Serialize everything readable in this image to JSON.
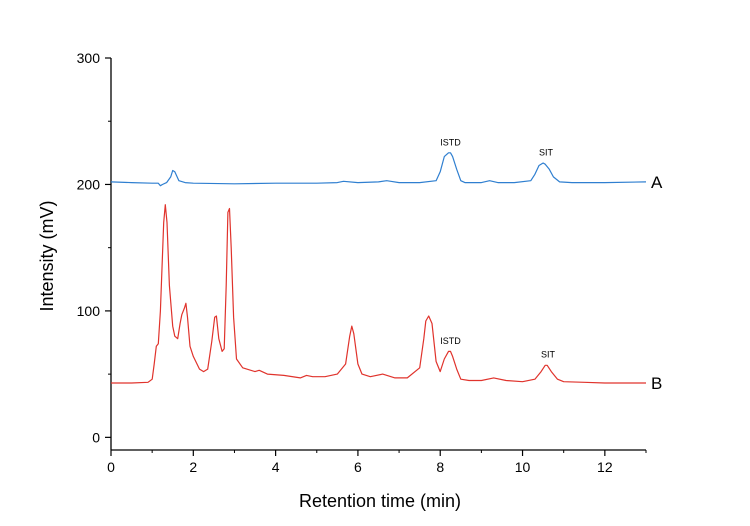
{
  "chart_data": {
    "type": "line",
    "title": "",
    "xlabel": "Retention time (min)",
    "ylabel": "Intensity (mV)",
    "xlim": [
      0,
      13
    ],
    "ylim": [
      -10,
      300
    ],
    "xticks": [
      0,
      2,
      4,
      6,
      8,
      10,
      12
    ],
    "yticks": [
      0,
      100,
      200,
      300
    ],
    "grid": false,
    "colors": {
      "A": "#2f7fd0",
      "B": "#e0332c"
    },
    "series": [
      {
        "name": "A",
        "x": [
          0,
          0.5,
          1.0,
          1.15,
          1.2,
          1.25,
          1.35,
          1.45,
          1.5,
          1.55,
          1.65,
          1.8,
          2.0,
          3.0,
          4.0,
          5.0,
          5.5,
          5.65,
          6.0,
          6.5,
          6.7,
          6.8,
          7.0,
          7.5,
          7.9,
          8.0,
          8.1,
          8.2,
          8.25,
          8.3,
          8.4,
          8.5,
          8.6,
          9.0,
          9.2,
          9.4,
          9.8,
          10.2,
          10.3,
          10.4,
          10.5,
          10.55,
          10.65,
          10.75,
          10.9,
          11.2,
          12.0,
          13.0
        ],
        "y": [
          202,
          201.5,
          201,
          201,
          199,
          200,
          201.5,
          206,
          211,
          210,
          203,
          201.5,
          201,
          200.5,
          201,
          201,
          201.5,
          202.5,
          201.5,
          202,
          203,
          202.5,
          201.5,
          201.5,
          203,
          210,
          222,
          225,
          225,
          222,
          212,
          203,
          201.5,
          201.5,
          203,
          201.5,
          201.5,
          203,
          208,
          215,
          217,
          216,
          212,
          206,
          202,
          201.5,
          201.5,
          202
        ]
      },
      {
        "name": "B",
        "x": [
          0,
          0.5,
          0.9,
          1.0,
          1.05,
          1.1,
          1.15,
          1.2,
          1.28,
          1.32,
          1.36,
          1.42,
          1.5,
          1.55,
          1.62,
          1.68,
          1.72,
          1.78,
          1.82,
          1.86,
          1.92,
          2.0,
          2.15,
          2.25,
          2.35,
          2.45,
          2.52,
          2.56,
          2.62,
          2.7,
          2.75,
          2.8,
          2.84,
          2.88,
          2.92,
          2.98,
          3.05,
          3.2,
          3.5,
          3.6,
          3.8,
          4.2,
          4.6,
          4.75,
          4.9,
          5.2,
          5.5,
          5.7,
          5.8,
          5.85,
          5.9,
          6.0,
          6.1,
          6.3,
          6.6,
          6.9,
          7.2,
          7.5,
          7.6,
          7.65,
          7.72,
          7.8,
          7.9,
          8.0,
          8.1,
          8.2,
          8.25,
          8.3,
          8.4,
          8.5,
          8.7,
          9.0,
          9.3,
          9.6,
          10.0,
          10.3,
          10.45,
          10.55,
          10.6,
          10.7,
          10.85,
          11.0,
          11.5,
          12.0,
          13.0
        ],
        "y": [
          43,
          43,
          43.5,
          46,
          58,
          72,
          74,
          100,
          170,
          184,
          170,
          120,
          88,
          80,
          78,
          90,
          97,
          102,
          106,
          95,
          72,
          64,
          54,
          52,
          54,
          76,
          95,
          96,
          78,
          68,
          70,
          120,
          178,
          181,
          150,
          95,
          62,
          55,
          52,
          53,
          50,
          49,
          47,
          49,
          48,
          48,
          50,
          58,
          80,
          88,
          82,
          58,
          50,
          48,
          50,
          47,
          47,
          55,
          78,
          92,
          96,
          90,
          60,
          52,
          62,
          68,
          68,
          64,
          54,
          46,
          45,
          45,
          47,
          45,
          44,
          46,
          52,
          57,
          57,
          52,
          46,
          44,
          43.5,
          43,
          43
        ]
      }
    ],
    "annotations": [
      {
        "text": "ISTD",
        "x": 8.0,
        "y": 231
      },
      {
        "text": "SIT",
        "x": 10.4,
        "y": 223
      },
      {
        "text": "ISTD",
        "x": 8.0,
        "y": 74
      },
      {
        "text": "SIT",
        "x": 10.45,
        "y": 63
      }
    ],
    "trace_labels": [
      {
        "text": "A",
        "y": 202
      },
      {
        "text": "B",
        "y": 43
      }
    ]
  }
}
